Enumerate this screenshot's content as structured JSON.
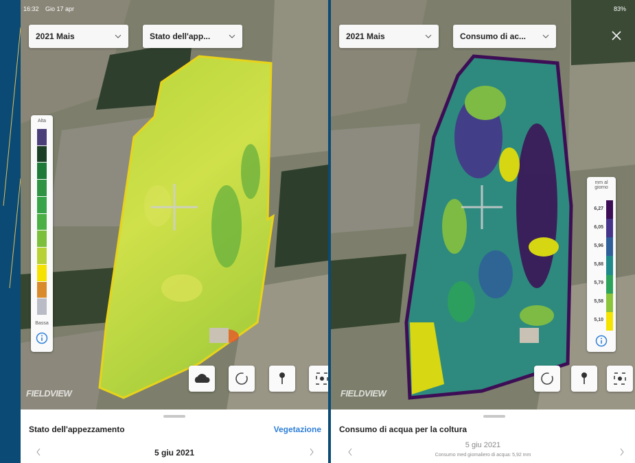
{
  "status_bar": {
    "time": "16:32",
    "date": "Gio 17 apr",
    "battery": "83%"
  },
  "left_panel": {
    "season_dropdown": "2021 Mais",
    "layer_dropdown": "Stato dell'app...",
    "legend": {
      "top": "Alta",
      "bottom": "Bassa"
    },
    "watermark": "FIELDVIEW",
    "sheet": {
      "title": "Stato dell'appezzamento",
      "link": "Vegetazione",
      "date": "5 giu 2021"
    }
  },
  "right_panel": {
    "season_dropdown": "2021 Mais",
    "layer_dropdown": "Consumo di ac...",
    "legend": {
      "unit": "mm al giorno",
      "values": [
        "6,27",
        "6,05",
        "5,96",
        "5,88",
        "5,79",
        "5,58",
        "5,10"
      ]
    },
    "watermark": "FIELDVIEW",
    "sheet": {
      "title": "Consumo di acqua per la coltura",
      "date": "5 giu 2021",
      "summary": "Consumo med giornaliero di acqua: 5,92 mm"
    }
  }
}
